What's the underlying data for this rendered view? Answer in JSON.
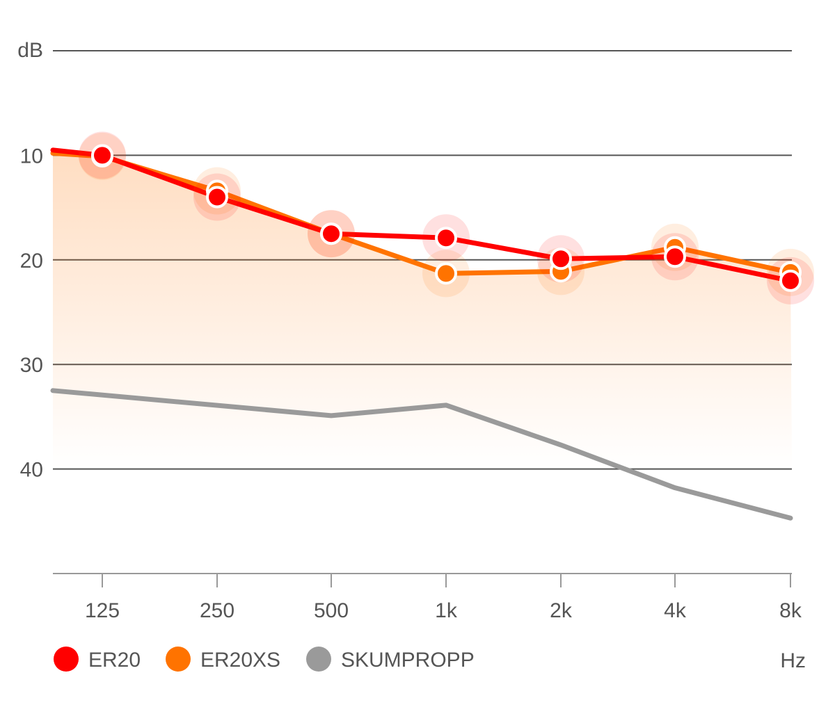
{
  "chart_data": {
    "type": "line",
    "ylabel": "dB",
    "xlabel": "Hz",
    "categories": [
      "125",
      "250",
      "500",
      "1k",
      "2k",
      "4k",
      "8k"
    ],
    "y_ticks": [
      "10",
      "20",
      "30",
      "40"
    ],
    "ylim": [
      0,
      50
    ],
    "y_inverted": true,
    "grid": true,
    "legend_position": "bottom-left",
    "series": [
      {
        "name": "ER20",
        "color": "#ff0000",
        "values": [
          10.0,
          14.0,
          17.5,
          17.9,
          19.9,
          19.7,
          22.0
        ],
        "left_edge": 9.5,
        "markers": true
      },
      {
        "name": "ER20XS",
        "color": "#ff7300",
        "values": [
          10.1,
          13.4,
          17.5,
          21.3,
          21.1,
          18.8,
          21.2
        ],
        "left_edge": 9.8,
        "markers": true
      },
      {
        "name": "SKUMPROPP",
        "color": "#9a9a9a",
        "values": [
          null,
          null,
          34.9,
          33.9,
          37.7,
          41.8,
          44.7
        ],
        "left_edge": 32.5,
        "markers": false
      }
    ]
  }
}
